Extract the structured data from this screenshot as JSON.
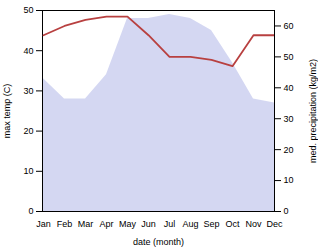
{
  "chart_data": {
    "type": "area",
    "categories": [
      "Jan",
      "Feb",
      "Mar",
      "Apr",
      "May",
      "Jun",
      "Jul",
      "Aug",
      "Sep",
      "Oct",
      "Nov",
      "Dec"
    ],
    "xlabel": "date (month)",
    "ylabel": "max temp (C)",
    "y2label": "med. precipitation (kg/m2)",
    "series": [
      {
        "type": "area",
        "color": "#c5caee",
        "values": [
          33,
          28,
          28,
          34,
          48,
          48,
          49,
          48,
          45,
          37,
          28,
          27
        ]
      },
      {
        "type": "line",
        "axis": "y2",
        "color": "#b84040",
        "values": [
          57,
          60,
          62,
          63,
          63,
          57,
          50,
          50,
          49,
          47,
          57,
          57
        ]
      }
    ],
    "ylim": [
      0,
      50
    ],
    "yticks": [
      0,
      10,
      20,
      30,
      40,
      50
    ],
    "y2lim": [
      0,
      65
    ],
    "y2ticks": [
      0,
      10,
      20,
      30,
      40,
      50,
      60
    ],
    "grid": false
  }
}
